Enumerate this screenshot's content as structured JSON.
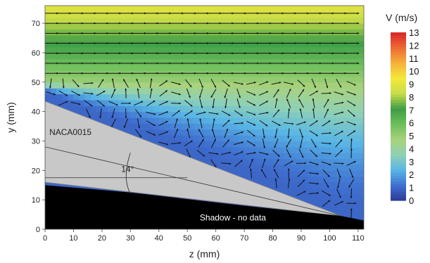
{
  "chart_data": {
    "type": "heatmap",
    "xlabel": "z (mm)",
    "ylabel": "y (mm)",
    "xlim": [
      0,
      112
    ],
    "ylim": [
      0,
      76
    ],
    "x_ticks": [
      0,
      10,
      20,
      30,
      40,
      50,
      60,
      70,
      80,
      90,
      100,
      110
    ],
    "y_ticks": [
      0,
      10,
      20,
      30,
      40,
      50,
      60,
      70
    ],
    "colorbar": {
      "title": "V (m/s)",
      "range": [
        0,
        13
      ],
      "ticks": [
        0,
        1,
        2,
        3,
        4,
        5,
        6,
        7,
        8,
        9,
        10,
        11,
        12,
        13
      ],
      "colors": [
        "#2c3a97",
        "#3f6fd0",
        "#58b6e6",
        "#8fd1b6",
        "#a9d27c",
        "#6cbf5b",
        "#3f9d46",
        "#c7dc4a",
        "#f4e93a",
        "#f6b23a",
        "#ee6a34",
        "#d8262a"
      ]
    },
    "annotations": {
      "airfoil": "NACA0015",
      "angle": "14°",
      "shadow": "Shadow - no data"
    },
    "airfoil_outline": [
      [
        0,
        43.5
      ],
      [
        104,
        4.5
      ],
      [
        0,
        16
      ]
    ],
    "shadow_outline": [
      [
        0,
        0
      ],
      [
        0,
        15
      ],
      [
        30,
        12.5
      ],
      [
        70,
        8
      ],
      [
        104,
        4.5
      ],
      [
        112,
        3
      ],
      [
        112,
        0
      ]
    ],
    "chord_line": [
      [
        0,
        28
      ],
      [
        104,
        4.5
      ]
    ],
    "horizontal_line": [
      [
        0,
        17.5
      ],
      [
        50,
        17.5
      ]
    ],
    "velocity_field": {
      "free_stream_speed_top": 9,
      "free_stream_speed_at_y50": 5,
      "wake_speed": 1
    }
  }
}
